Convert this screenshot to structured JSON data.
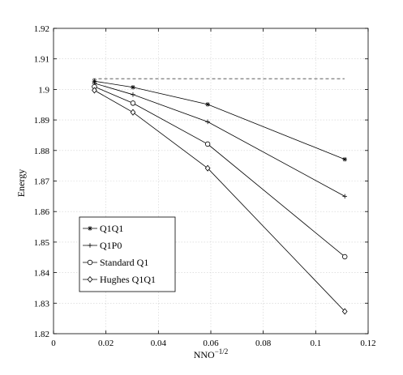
{
  "chart_data": {
    "type": "line",
    "title": "",
    "xlabel": "NNO",
    "xlabel_superscript": "−1/2",
    "ylabel": "Energy",
    "xlim": [
      0,
      0.12
    ],
    "ylim": [
      1.82,
      1.92
    ],
    "x_ticks": [
      "0",
      "0.02",
      "0.04",
      "0.06",
      "0.08",
      "0.1",
      "0.12"
    ],
    "y_ticks": [
      "1.82",
      "1.83",
      "1.84",
      "1.85",
      "1.86",
      "1.87",
      "1.88",
      "1.89",
      "1.9",
      "1.91",
      "1.92"
    ],
    "x_tick_values": [
      0,
      0.02,
      0.04,
      0.06,
      0.08,
      0.1,
      0.12
    ],
    "y_tick_values": [
      1.82,
      1.83,
      1.84,
      1.85,
      1.86,
      1.87,
      1.88,
      1.89,
      1.9,
      1.91,
      1.92
    ],
    "grid": true,
    "legend_position": "bottom-left",
    "reference_line": {
      "y": 1.9035,
      "x_range": [
        0.015,
        0.111
      ],
      "style": "dashed"
    },
    "x": [
      0.0156,
      0.0303,
      0.0588,
      0.1111
    ],
    "series": [
      {
        "name": "Q1Q1",
        "marker": "star",
        "values": [
          1.9027,
          1.9007,
          1.8951,
          1.8771
        ]
      },
      {
        "name": "Q1P0",
        "marker": "plus",
        "values": [
          1.902,
          1.8983,
          1.8894,
          1.865
        ]
      },
      {
        "name": "Standard Q1",
        "marker": "circle",
        "values": [
          1.9009,
          1.8955,
          1.8821,
          1.8452
        ]
      },
      {
        "name": "Hughes Q1Q1",
        "marker": "diamond",
        "values": [
          1.8997,
          1.8925,
          1.8742,
          1.8273
        ]
      }
    ]
  }
}
